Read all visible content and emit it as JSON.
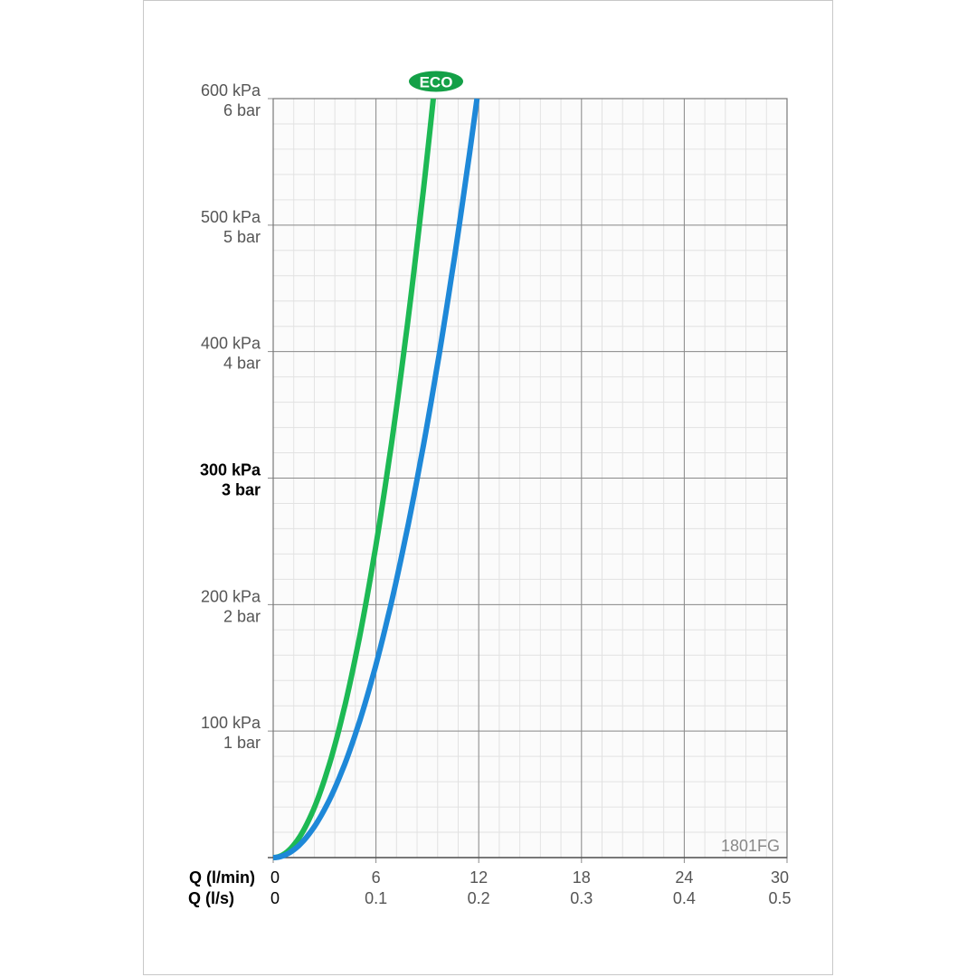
{
  "chart_data": {
    "type": "line",
    "title": "",
    "badge": "ECO",
    "code": "1801FG",
    "xlabel_primary": "Q (l/min)",
    "xlabel_secondary": "Q (l/s)",
    "xlim": [
      0,
      30
    ],
    "ylim": [
      0,
      600
    ],
    "grid": true,
    "x_ticks_primary": [
      "0",
      "6",
      "12",
      "18",
      "24",
      "30"
    ],
    "x_ticks_secondary": [
      "0",
      "0.1",
      "0.2",
      "0.3",
      "0.4",
      "0.5"
    ],
    "x_tick_values": [
      0,
      6,
      12,
      18,
      24,
      30
    ],
    "y_tick_values": [
      100,
      200,
      300,
      400,
      500,
      600
    ],
    "y_ticks_kpa": [
      "100 kPa",
      "200 kPa",
      "300 kPa",
      "400 kPa",
      "500 kPa",
      "600 kPa"
    ],
    "y_ticks_bar": [
      "1 bar",
      "2 bar",
      "3 bar",
      "4 bar",
      "5 bar",
      "6 bar"
    ],
    "y_bold_tick": 300,
    "colors": {
      "eco": "#1db954",
      "standard": "#1e88d8",
      "badge": "#14a047"
    },
    "series": [
      {
        "key": "eco",
        "x": [
          0,
          1,
          2,
          3,
          4,
          5,
          6,
          7,
          8,
          9,
          9.35
        ],
        "y": [
          0,
          6.9,
          27.4,
          61.7,
          110,
          171,
          247,
          336,
          439,
          556,
          600
        ]
      },
      {
        "key": "standard",
        "x": [
          0,
          1,
          2,
          3,
          4,
          5,
          6,
          7,
          8,
          9,
          10,
          11,
          11.9
        ],
        "y": [
          0,
          4.2,
          17,
          38,
          68,
          106,
          153,
          208,
          271,
          343,
          424,
          513,
          600
        ]
      }
    ]
  }
}
